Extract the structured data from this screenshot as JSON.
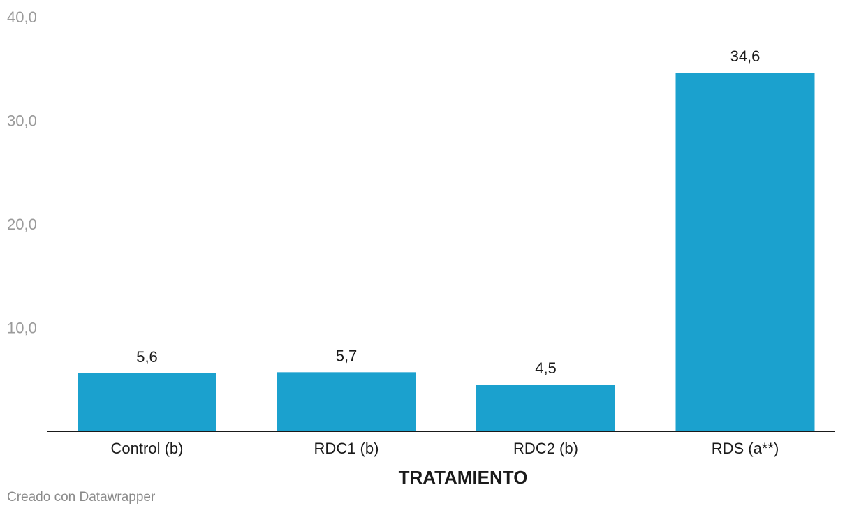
{
  "chart_data": {
    "type": "bar",
    "categories": [
      "Control (b)",
      "RDC1 (b)",
      "RDC2 (b)",
      "RDS (a**)"
    ],
    "values": [
      5.6,
      5.7,
      4.5,
      34.6
    ],
    "value_labels": [
      "5,6",
      "5,7",
      "4,5",
      "34,6"
    ],
    "y_ticks": [
      {
        "value": 10,
        "label": "10,0"
      },
      {
        "value": 20,
        "label": "20,0"
      },
      {
        "value": 30,
        "label": "30,0"
      },
      {
        "value": 40,
        "label": "40,0"
      }
    ],
    "ylim": [
      0,
      40
    ],
    "xlabel": "TRATAMIENTO",
    "ylabel": "",
    "title": "",
    "grid": false,
    "legend": "none",
    "bar_color": "#1ba1ce"
  },
  "footer": {
    "credit": "Creado con Datawrapper"
  }
}
